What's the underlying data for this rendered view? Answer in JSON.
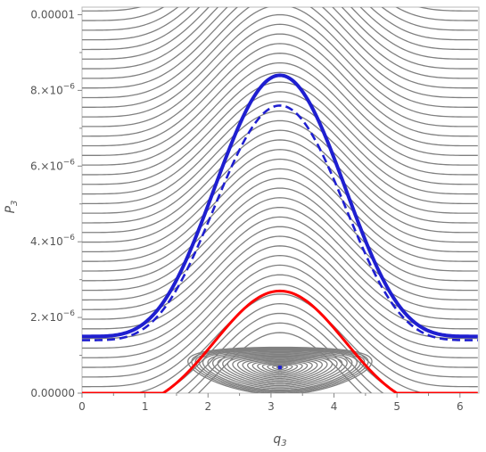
{
  "colors": {
    "contour": "#808080",
    "separatrix": "#ff0000",
    "trajectory": "#1f1fd0",
    "axis": "#888888",
    "tick_text": "#555555"
  },
  "chart_data": {
    "type": "line",
    "title": "",
    "xlabel": "q",
    "xlabel_sub": "3",
    "ylabel": "P",
    "ylabel_sub": "3",
    "xlim": [
      0,
      6.3
    ],
    "ylim": [
      0,
      1.02e-05
    ],
    "grid": false,
    "x_ticks": [
      0,
      1,
      2,
      3,
      4,
      5,
      6
    ],
    "x_tick_labels": [
      "0",
      "1",
      "2",
      "3",
      "4",
      "5",
      "6"
    ],
    "y_ticks": [
      0,
      2e-06,
      4e-06,
      6e-06,
      8e-06,
      1e-05
    ],
    "y_tick_labels": [
      {
        "mantissa": "0.00000",
        "exp": ""
      },
      {
        "mantissa": "2.×10",
        "exp": "−6"
      },
      {
        "mantissa": "4.×10",
        "exp": "−6"
      },
      {
        "mantissa": "6.×10",
        "exp": "−6"
      },
      {
        "mantissa": "8.×10",
        "exp": "−6"
      },
      {
        "mantissa": "0.00001",
        "exp": ""
      }
    ],
    "contour_family": {
      "description_levels_P_at_q0": [
        -1.1e-06,
        1.01e-05
      ],
      "outer_count": 45,
      "inner_levels": [
        0.05,
        0.12,
        0.2,
        0.28,
        0.36,
        0.44,
        0.52,
        0.6,
        0.68,
        0.76,
        0.84,
        0.92,
        1.0,
        1.08,
        1.16,
        1.24,
        1.3,
        1.36,
        1.42,
        1.48
      ],
      "peak_amplitude_at_separatrix": 2.7e-06,
      "center": [
        3.1416,
        6.8e-07
      ]
    },
    "series": [
      {
        "name": "",
        "style": "solid-red",
        "kind": "separatrix",
        "x": [
          0,
          1.0,
          1.6,
          2.0,
          2.5,
          3.1416,
          3.8,
          4.3,
          4.7,
          5.3,
          6.2832
        ],
        "y": [
          0,
          0,
          0,
          6e-07,
          1.8e-06,
          2.7e-06,
          1.8e-06,
          6e-07,
          0,
          0,
          0
        ]
      },
      {
        "name": "",
        "style": "thick-solid-blue",
        "kind": "trajectory",
        "x": [
          0,
          0.5,
          1.0,
          1.5,
          2.0,
          2.5,
          3.1416,
          3.8,
          4.3,
          4.8,
          5.3,
          5.8,
          6.2832
        ],
        "y": [
          1.5e-06,
          1.7e-06,
          2.3e-06,
          3.4e-06,
          5.3e-06,
          7.3e-06,
          8.4e-06,
          7.2e-06,
          5.3e-06,
          3.3e-06,
          2.2e-06,
          1.7e-06,
          1.5e-06
        ]
      },
      {
        "name": "",
        "style": "dashed-blue",
        "kind": "trajectory",
        "x": [
          0,
          0.5,
          1.0,
          1.5,
          2.0,
          2.5,
          3.1416,
          3.8,
          4.3,
          4.8,
          5.3,
          5.8,
          6.2832
        ],
        "y": [
          1.4e-06,
          1.6e-06,
          2.1e-06,
          3.1e-06,
          4.8e-06,
          6.6e-06,
          7.6e-06,
          6.5e-06,
          4.8e-06,
          3.1e-06,
          2e-06,
          1.6e-06,
          1.4e-06
        ]
      }
    ],
    "points": [
      {
        "x": 3.1416,
        "y": 6.8e-07,
        "style": "blue-square"
      }
    ]
  }
}
